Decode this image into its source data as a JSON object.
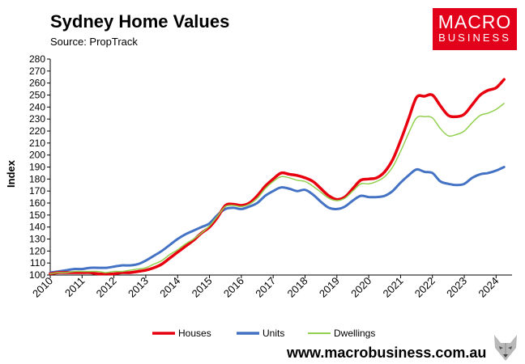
{
  "header": {
    "title": "Sydney Home Values",
    "subtitle": "Source: PropTrack"
  },
  "logo": {
    "line1": "MACRO",
    "line2": "BUSINESS",
    "color": "#e2001a"
  },
  "footer": {
    "url": "www.macrobusiness.com.au"
  },
  "chart_data": {
    "type": "line",
    "title": "Sydney Home Values",
    "ylabel": "Index",
    "xlabel": "",
    "ylim": [
      100,
      280
    ],
    "xlim": [
      2010,
      2024.5
    ],
    "yticks": [
      100,
      110,
      120,
      130,
      140,
      150,
      160,
      170,
      180,
      190,
      200,
      210,
      220,
      230,
      240,
      250,
      260,
      270,
      280
    ],
    "xticks": [
      "2010",
      "2011",
      "2012",
      "2013",
      "2014",
      "2015",
      "2016",
      "2017",
      "2018",
      "2019",
      "2020",
      "2021",
      "2022",
      "2023",
      "2024"
    ],
    "grid": false,
    "legend_position": "bottom",
    "x": [
      2010.0,
      2010.25,
      2010.5,
      2010.75,
      2011.0,
      2011.25,
      2011.5,
      2011.75,
      2012.0,
      2012.25,
      2012.5,
      2012.75,
      2013.0,
      2013.25,
      2013.5,
      2013.75,
      2014.0,
      2014.25,
      2014.5,
      2014.75,
      2015.0,
      2015.25,
      2015.5,
      2015.75,
      2016.0,
      2016.25,
      2016.5,
      2016.75,
      2017.0,
      2017.25,
      2017.5,
      2017.75,
      2018.0,
      2018.25,
      2018.5,
      2018.75,
      2019.0,
      2019.25,
      2019.5,
      2019.75,
      2020.0,
      2020.25,
      2020.5,
      2020.75,
      2021.0,
      2021.25,
      2021.5,
      2021.75,
      2022.0,
      2022.25,
      2022.5,
      2022.75,
      2023.0,
      2023.25,
      2023.5,
      2023.75,
      2024.0,
      2024.25
    ],
    "series": [
      {
        "name": "Houses",
        "color": "#e8000f",
        "values": [
          101,
          102,
          102,
          102,
          102,
          102,
          101,
          101,
          101,
          102,
          102,
          103,
          104,
          106,
          109,
          114,
          119,
          124,
          129,
          135,
          140,
          148,
          158,
          159,
          158,
          160,
          166,
          174,
          180,
          185,
          184,
          183,
          181,
          178,
          172,
          166,
          163,
          165,
          172,
          179,
          180,
          181,
          186,
          196,
          212,
          230,
          248,
          249,
          250,
          241,
          233,
          232,
          234,
          242,
          250,
          254,
          256,
          263
        ]
      },
      {
        "name": "Units",
        "color": "#4472c4",
        "values": [
          102,
          103,
          104,
          105,
          105,
          106,
          106,
          106,
          107,
          108,
          108,
          109,
          112,
          116,
          120,
          125,
          130,
          134,
          137,
          140,
          143,
          150,
          155,
          156,
          155,
          157,
          160,
          166,
          170,
          173,
          172,
          170,
          171,
          167,
          161,
          156,
          155,
          157,
          162,
          166,
          165,
          165,
          166,
          170,
          177,
          183,
          188,
          186,
          185,
          178,
          176,
          175,
          176,
          181,
          184,
          185,
          187,
          190
        ]
      },
      {
        "name": "Dwellings",
        "color": "#92d050",
        "values": [
          101,
          102,
          102,
          103,
          103,
          103,
          103,
          102,
          103,
          103,
          104,
          105,
          106,
          109,
          112,
          117,
          121,
          126,
          130,
          135,
          141,
          149,
          157,
          158,
          157,
          159,
          164,
          172,
          178,
          182,
          181,
          179,
          178,
          174,
          169,
          164,
          162,
          164,
          170,
          176,
          176,
          178,
          182,
          190,
          203,
          218,
          231,
          232,
          231,
          222,
          216,
          217,
          220,
          227,
          233,
          235,
          238,
          243
        ]
      }
    ]
  }
}
